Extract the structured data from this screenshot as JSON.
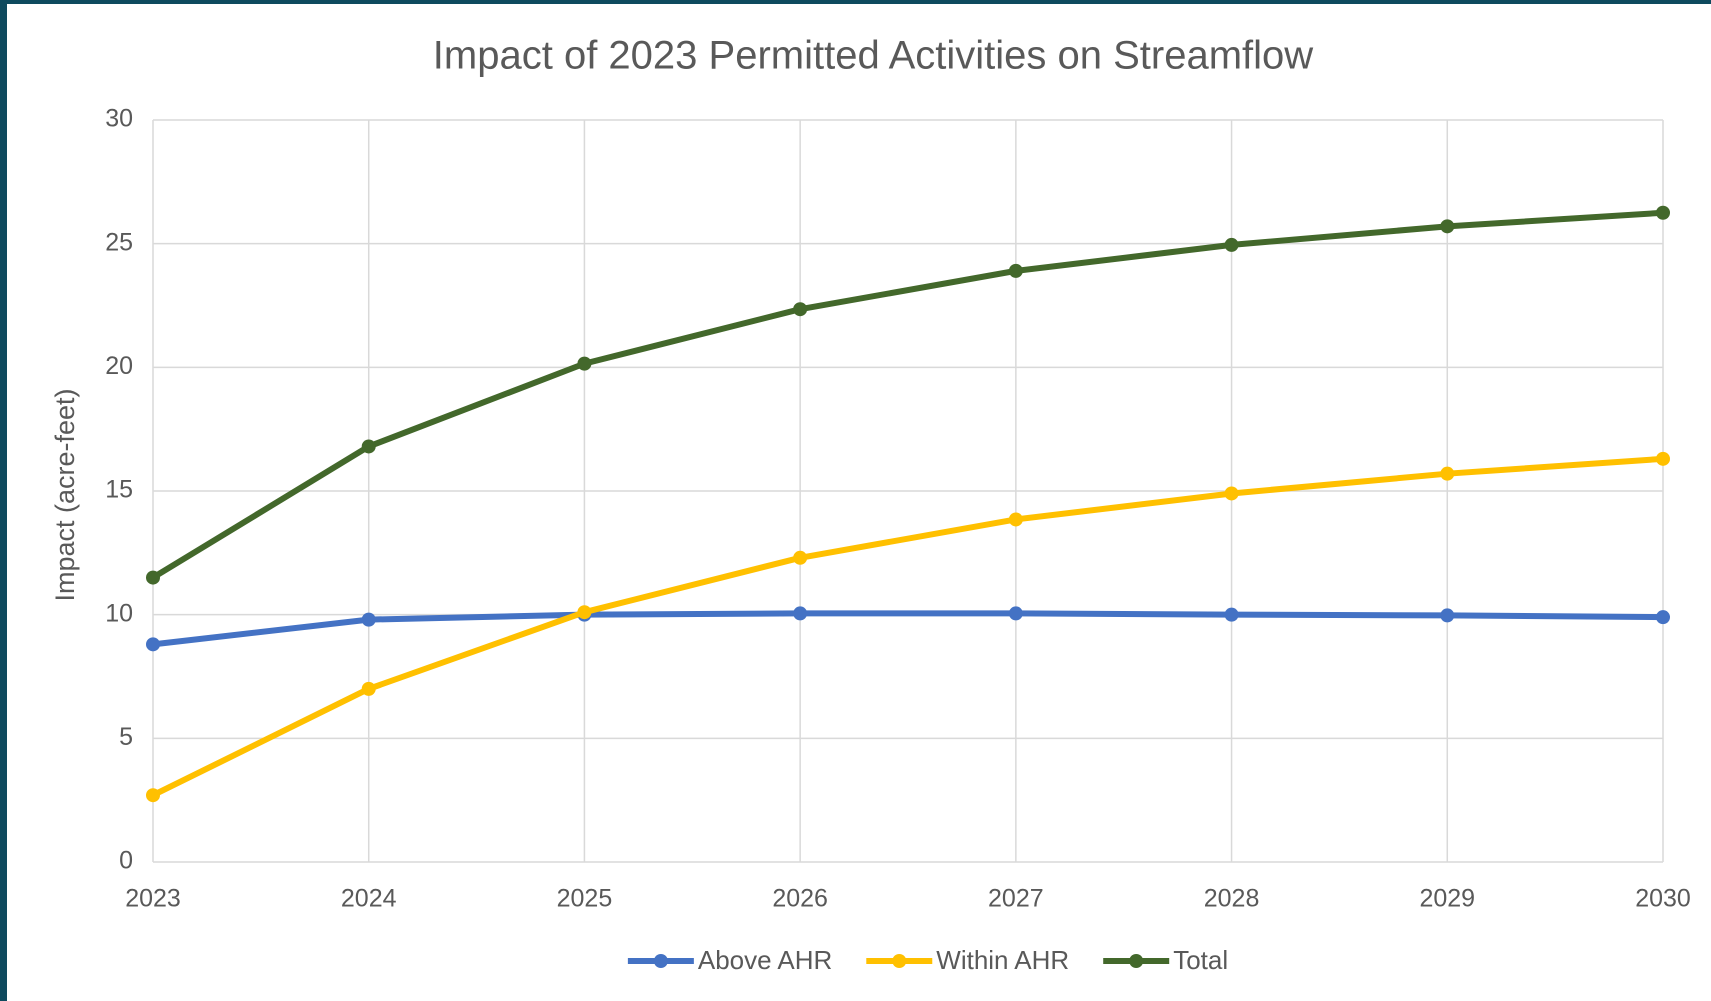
{
  "chart_data": {
    "type": "line",
    "title": "Impact of 2023 Permitted Activities on Streamflow",
    "y_label": "Impact (acre-feet)",
    "x": [
      2023,
      2024,
      2025,
      2026,
      2027,
      2028,
      2029,
      2030
    ],
    "xlim": [
      2023,
      2030
    ],
    "xticks": [
      2023,
      2024,
      2025,
      2026,
      2027,
      2028,
      2029,
      2030
    ],
    "ylim": [
      0,
      30
    ],
    "yticks": [
      0,
      5,
      10,
      15,
      20,
      25,
      30
    ],
    "grid": true,
    "legend": "bottom",
    "series": [
      {
        "name": "Above AHR",
        "color": "#4472c4",
        "values": [
          8.8,
          9.8,
          10.0,
          10.05,
          10.05,
          10.0,
          9.97,
          9.9
        ]
      },
      {
        "name": "Within AHR",
        "color": "#ffc000",
        "values": [
          2.7,
          7.0,
          10.1,
          12.3,
          13.85,
          14.9,
          15.7,
          16.3
        ]
      },
      {
        "name": "Total",
        "color": "#43682b",
        "values": [
          11.5,
          16.8,
          20.15,
          22.35,
          23.9,
          24.95,
          25.7,
          26.25
        ]
      }
    ]
  }
}
